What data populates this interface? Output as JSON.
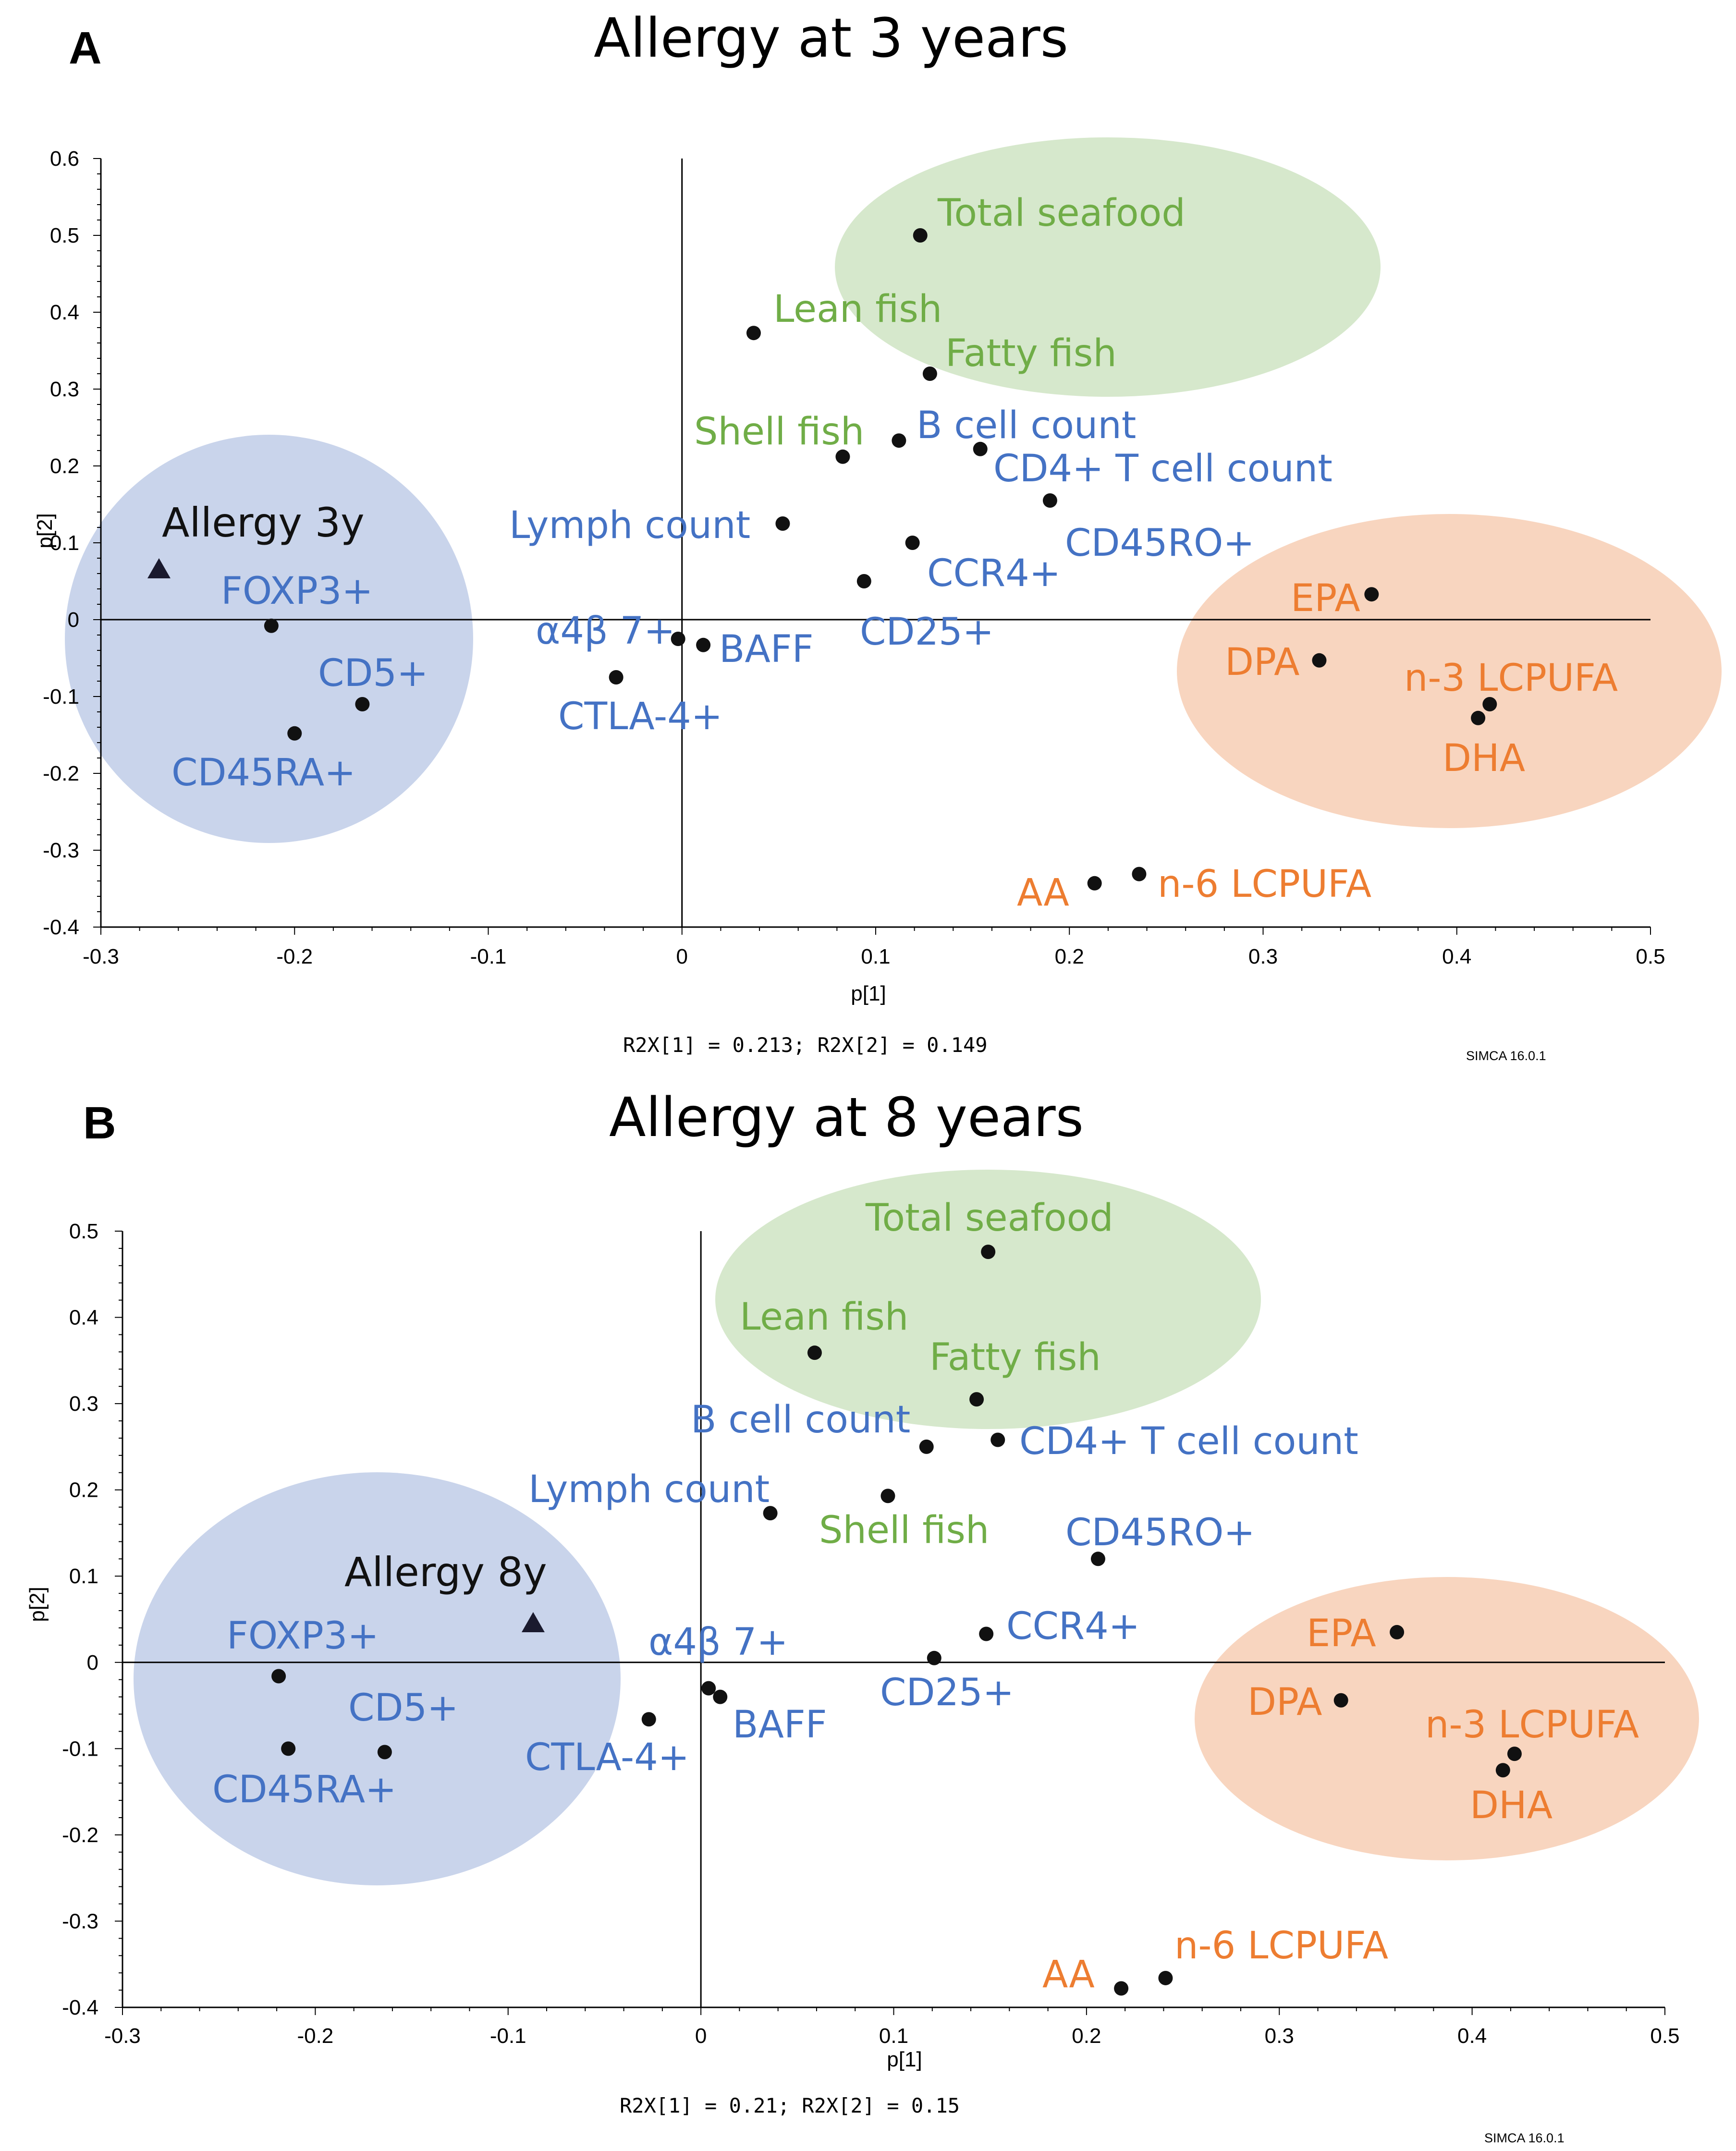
{
  "colors": {
    "immune": "#4472C4",
    "seafood": "#70AD47",
    "fatty_acid": "#ED7D31",
    "immune_ellipse": "#C9D4EB",
    "seafood_ellipse": "#D6E8CC",
    "fatty_acid_ellipse": "#F8D5BF",
    "point": "#111111"
  },
  "chart_data": [
    {
      "type": "scatter",
      "panel": "A",
      "title": "Allergy at 3 years",
      "xlabel": "p[1]",
      "ylabel": "p[2]",
      "xlim": [
        -0.3,
        0.5
      ],
      "ylim": [
        -0.4,
        0.6
      ],
      "xticks": [
        "-0.3",
        "-0.2",
        "-0.1",
        "0",
        "0.1",
        "0.2",
        "0.3",
        "0.4",
        "0.5"
      ],
      "yticks": [
        "0.6",
        "0.5",
        "0.4",
        "0.3",
        "0.2",
        "0.1",
        "0",
        "-0.1",
        "-0.2",
        "-0.3",
        "-0.4"
      ],
      "r2x_text": "R2X[1] = 0.213; R2X[2] = 0.149",
      "software": "SIMCA 16.0.1",
      "response": {
        "name": "Allergy 3y",
        "x": -0.27,
        "y": 0.065
      },
      "points": [
        {
          "name": "Total seafood",
          "x": 0.123,
          "y": 0.5,
          "group": "seafood"
        },
        {
          "name": "Lean fish",
          "x": 0.037,
          "y": 0.373,
          "group": "seafood"
        },
        {
          "name": "Fatty fish",
          "x": 0.128,
          "y": 0.32,
          "group": "seafood"
        },
        {
          "name": "Shell fish",
          "x": 0.083,
          "y": 0.212,
          "group": "seafood"
        },
        {
          "name": "B cell count",
          "x": 0.112,
          "y": 0.233,
          "group": "immune"
        },
        {
          "name": "CD4+ T cell count",
          "x": 0.154,
          "y": 0.222,
          "group": "immune"
        },
        {
          "name": "Lymph count",
          "x": 0.052,
          "y": 0.125,
          "group": "immune"
        },
        {
          "name": "CD45RO+",
          "x": 0.19,
          "y": 0.155,
          "group": "immune"
        },
        {
          "name": "CCR4+",
          "x": 0.119,
          "y": 0.1,
          "group": "immune"
        },
        {
          "name": "CD25+",
          "x": 0.094,
          "y": 0.05,
          "group": "immune"
        },
        {
          "name": "α4β 7+",
          "x": -0.002,
          "y": -0.025,
          "group": "immune"
        },
        {
          "name": "BAFF",
          "x": 0.011,
          "y": -0.033,
          "group": "immune"
        },
        {
          "name": "CTLA-4+",
          "x": -0.034,
          "y": -0.075,
          "group": "immune"
        },
        {
          "name": "FOXP3+",
          "x": -0.212,
          "y": -0.008,
          "group": "immune"
        },
        {
          "name": "CD5+",
          "x": -0.165,
          "y": -0.11,
          "group": "immune"
        },
        {
          "name": "CD45RA+",
          "x": -0.2,
          "y": -0.148,
          "group": "immune"
        },
        {
          "name": "EPA",
          "x": 0.356,
          "y": 0.033,
          "group": "fatty_acid"
        },
        {
          "name": "DPA",
          "x": 0.329,
          "y": -0.053,
          "group": "fatty_acid"
        },
        {
          "name": "n-3 LCPUFA",
          "x": 0.417,
          "y": -0.11,
          "group": "fatty_acid"
        },
        {
          "name": "DHA",
          "x": 0.411,
          "y": -0.128,
          "group": "fatty_acid"
        },
        {
          "name": "AA",
          "x": 0.213,
          "y": -0.343,
          "group": "fatty_acid"
        },
        {
          "name": "n-6 LCPUFA",
          "x": 0.236,
          "y": -0.331,
          "group": "fatty_acid"
        }
      ]
    },
    {
      "type": "scatter",
      "panel": "B",
      "title": "Allergy at 8 years",
      "xlabel": "p[1]",
      "ylabel": "p[2]",
      "xlim": [
        -0.3,
        0.5
      ],
      "ylim": [
        -0.4,
        0.5
      ],
      "xticks": [
        "-0.3",
        "-0.2",
        "-0.1",
        "0",
        "0.1",
        "0.2",
        "0.3",
        "0.4",
        "0.5"
      ],
      "yticks": [
        "0.5",
        "0.4",
        "0.3",
        "0.2",
        "0.1",
        "0",
        "-0.1",
        "-0.2",
        "-0.3",
        "-0.4"
      ],
      "r2x_text": "R2X[1] = 0.21; R2X[2] = 0.15",
      "software": "SIMCA 16.0.1",
      "response": {
        "name": "Allergy 8y",
        "x": -0.087,
        "y": 0.045
      },
      "points": [
        {
          "name": "Total seafood",
          "x": 0.149,
          "y": 0.476,
          "group": "seafood"
        },
        {
          "name": "Lean fish",
          "x": 0.059,
          "y": 0.359,
          "group": "seafood"
        },
        {
          "name": "Fatty fish",
          "x": 0.143,
          "y": 0.305,
          "group": "seafood"
        },
        {
          "name": "Shell fish",
          "x": 0.097,
          "y": 0.193,
          "group": "seafood"
        },
        {
          "name": "B cell count",
          "x": 0.117,
          "y": 0.25,
          "group": "immune"
        },
        {
          "name": "CD4+ T cell count",
          "x": 0.154,
          "y": 0.258,
          "group": "immune"
        },
        {
          "name": "Lymph count",
          "x": 0.036,
          "y": 0.173,
          "group": "immune"
        },
        {
          "name": "CD45RO+",
          "x": 0.206,
          "y": 0.12,
          "group": "immune"
        },
        {
          "name": "CCR4+",
          "x": 0.148,
          "y": 0.033,
          "group": "immune"
        },
        {
          "name": "CD25+",
          "x": 0.121,
          "y": 0.005,
          "group": "immune"
        },
        {
          "name": "α4β 7+",
          "x": 0.004,
          "y": -0.03,
          "group": "immune"
        },
        {
          "name": "BAFF",
          "x": 0.01,
          "y": -0.04,
          "group": "immune"
        },
        {
          "name": "CTLA-4+",
          "x": -0.027,
          "y": -0.066,
          "group": "immune"
        },
        {
          "name": "FOXP3+",
          "x": -0.219,
          "y": -0.016,
          "group": "immune"
        },
        {
          "name": "CD5+",
          "x": -0.164,
          "y": -0.104,
          "group": "immune"
        },
        {
          "name": "CD45RA+",
          "x": -0.214,
          "y": -0.1,
          "group": "immune"
        },
        {
          "name": "EPA",
          "x": 0.361,
          "y": 0.035,
          "group": "fatty_acid"
        },
        {
          "name": "DPA",
          "x": 0.332,
          "y": -0.044,
          "group": "fatty_acid"
        },
        {
          "name": "n-3 LCPUFA",
          "x": 0.422,
          "y": -0.106,
          "group": "fatty_acid"
        },
        {
          "name": "DHA",
          "x": 0.416,
          "y": -0.125,
          "group": "fatty_acid"
        },
        {
          "name": "AA",
          "x": 0.218,
          "y": -0.378,
          "group": "fatty_acid"
        },
        {
          "name": "n-6 LCPUFA",
          "x": 0.241,
          "y": -0.366,
          "group": "fatty_acid"
        }
      ]
    }
  ]
}
